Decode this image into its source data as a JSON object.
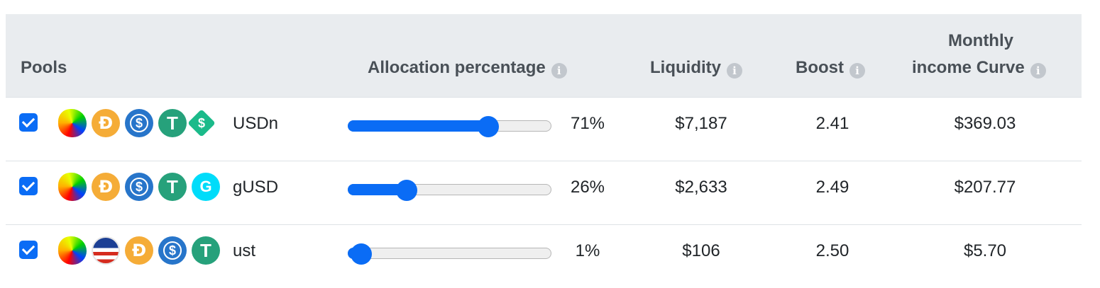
{
  "headers": {
    "pools": "Pools",
    "allocation": "Allocation percentage",
    "liquidity": "Liquidity",
    "boost": "Boost",
    "income_line1": "Monthly",
    "income_line2": "income Curve",
    "info_glyph": "i"
  },
  "rows": [
    {
      "checked": true,
      "name": "USDn",
      "icons": [
        "curve-susd-icon",
        "dai-icon",
        "usdc-icon",
        "usdt-icon",
        "susd-icon"
      ],
      "allocation_percent": 71,
      "allocation_label": "71%",
      "liquidity": "$7,187",
      "boost": "2.41",
      "income": "$369.03"
    },
    {
      "checked": true,
      "name": "gUSD",
      "icons": [
        "curve-gusd-icon",
        "dai-icon",
        "usdc-icon",
        "usdt-icon",
        "gusd-icon"
      ],
      "allocation_percent": 26,
      "allocation_label": "26%",
      "liquidity": "$2,633",
      "boost": "2.49",
      "income": "$207.77"
    },
    {
      "checked": true,
      "name": "ust",
      "icons": [
        "curve-u-icon",
        "us-flag-icon",
        "dai-icon",
        "usdc-icon",
        "usdt-icon"
      ],
      "allocation_percent": 1,
      "allocation_label": "1%",
      "liquidity": "$106",
      "boost": "2.50",
      "income": "$5.70"
    }
  ],
  "colors": {
    "accent": "#0a6cf5",
    "header_bg": "#e9ecef",
    "header_text": "#495057"
  }
}
